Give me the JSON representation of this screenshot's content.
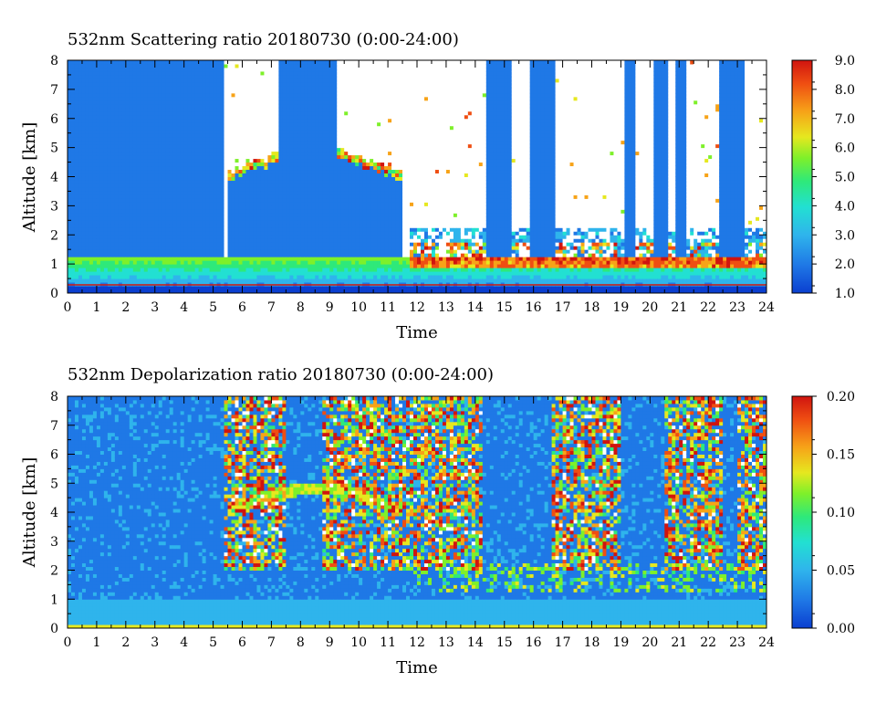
{
  "chart_data": [
    {
      "type": "heatmap",
      "title": "532nm Scattering ratio  20180730 (0:00-24:00)",
      "xlabel": "Time",
      "ylabel": "Altitude [km]",
      "xlim": [
        0,
        24
      ],
      "ylim": [
        0,
        8
      ],
      "x_ticks": [
        0,
        1,
        2,
        3,
        4,
        5,
        6,
        7,
        8,
        9,
        10,
        11,
        12,
        13,
        14,
        15,
        16,
        17,
        18,
        19,
        20,
        21,
        22,
        23,
        24
      ],
      "y_ticks": [
        0,
        1,
        2,
        3,
        4,
        5,
        6,
        7,
        8
      ],
      "colorbar": {
        "min": 1.0,
        "max": 9.0,
        "ticks": [
          "1.0",
          "2.0",
          "3.0",
          "4.0",
          "5.0",
          "6.0",
          "7.0",
          "8.0",
          "9.0"
        ]
      },
      "features": {
        "boundary_layer_top_km": 1.1,
        "cloud_layer_4_5km_hours": [
          5.5,
          11.5
        ],
        "low_clouds_1_2_5km_hours": [
          11.8,
          24
        ],
        "high_cloud_columns_hours": [
          [
            0,
            5.4
          ],
          [
            7.3,
            9.3
          ],
          [
            14.4,
            15.2
          ],
          [
            15.9,
            16.7
          ],
          [
            19.1,
            19.5
          ],
          [
            20.1,
            20.6
          ],
          [
            20.9,
            21.3
          ],
          [
            22.4,
            23.3
          ]
        ]
      },
      "colormap": [
        "#0b3fd0",
        "#1f78e6",
        "#2fb4ec",
        "#22e0d2",
        "#2ee97a",
        "#7ef02a",
        "#e6e81f",
        "#f7a318",
        "#ef4e12",
        "#d0140f"
      ]
    },
    {
      "type": "heatmap",
      "title": "532nm Depolarization ratio  20180730 (0:00-24:00)",
      "xlabel": "Time",
      "ylabel": "Altitude [km]",
      "xlim": [
        0,
        24
      ],
      "ylim": [
        0,
        8
      ],
      "x_ticks": [
        0,
        1,
        2,
        3,
        4,
        5,
        6,
        7,
        8,
        9,
        10,
        11,
        12,
        13,
        14,
        15,
        16,
        17,
        18,
        19,
        20,
        21,
        22,
        23,
        24
      ],
      "y_ticks": [
        0,
        1,
        2,
        3,
        4,
        5,
        6,
        7,
        8
      ],
      "colorbar": {
        "min": 0.0,
        "max": 0.2,
        "ticks": [
          "0.00",
          "0.05",
          "0.10",
          "0.15",
          "0.20"
        ]
      },
      "features": {
        "cirrus_high_depol_hours": [
          [
            5.4,
            7.5
          ],
          [
            8.8,
            14.3
          ],
          [
            16.6,
            19.0
          ],
          [
            20.5,
            22.5
          ],
          [
            23.0,
            24.0
          ]
        ],
        "cloud_layer_4_5km_hours": [
          5.5,
          11.5
        ],
        "near_surface_layer_km": 0.1
      },
      "colormap": [
        "#0b3fd0",
        "#1f78e6",
        "#2fb4ec",
        "#22e0d2",
        "#2ee97a",
        "#7ef02a",
        "#e6e81f",
        "#f7a318",
        "#ef4e12",
        "#d0140f"
      ]
    }
  ]
}
